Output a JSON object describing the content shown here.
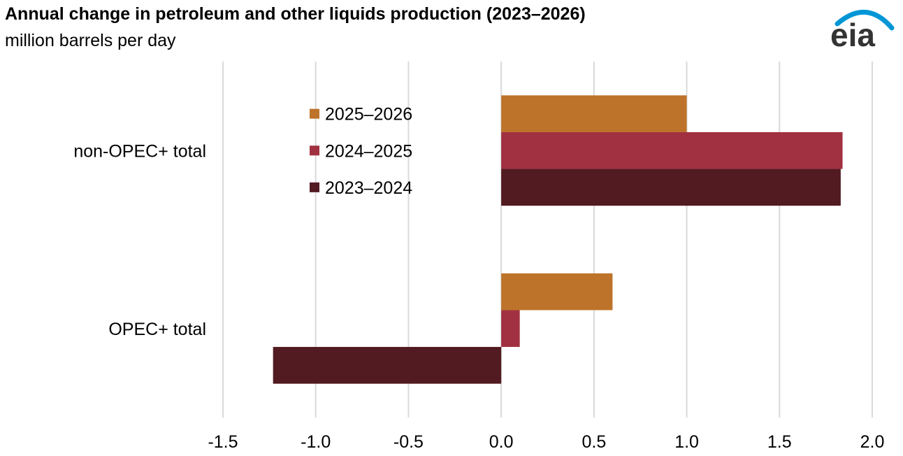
{
  "header": {
    "title": "Annual change in petroleum and other liquids production (2023–2026)",
    "subtitle": "million barrels per day"
  },
  "logo": {
    "text": "eia",
    "icon": "eia-logo",
    "arc_color": "#0096d6",
    "text_color": "#333333"
  },
  "chart_data": {
    "type": "bar",
    "orientation": "horizontal",
    "title": "Annual change in petroleum and other liquids production (2023–2026)",
    "subtitle": "million barrels per day",
    "xlabel": "",
    "ylabel": "",
    "xlim": [
      -1.5,
      2.0
    ],
    "x_ticks": [
      -1.5,
      -1.0,
      -0.5,
      0.0,
      0.5,
      1.0,
      1.5,
      2.0
    ],
    "x_tick_labels": [
      "-1.5",
      "-1.0",
      "-0.5",
      "0.0",
      "0.5",
      "1.0",
      "1.5",
      "2.0"
    ],
    "categories": [
      "non-OPEC+ total",
      "OPEC+ total"
    ],
    "series": [
      {
        "name": "2025–2026",
        "color": "#bd732a",
        "values": [
          1.0,
          0.6
        ]
      },
      {
        "name": "2024–2025",
        "color": "#a13140",
        "values": [
          1.84,
          0.1
        ]
      },
      {
        "name": "2023–2024",
        "color": "#521a21",
        "values": [
          1.83,
          -1.23
        ]
      }
    ],
    "grid": "vertical",
    "legend_position": "top-center"
  }
}
